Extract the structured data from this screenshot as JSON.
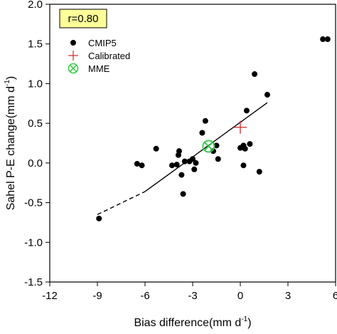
{
  "chart_data": {
    "type": "scatter",
    "xlabel": "Bias difference(mm d",
    "xlabel_sup": "-1",
    "xlabel_close": ")",
    "ylabel": "Sahel P-E change(mm d",
    "ylabel_sup": "-1",
    "ylabel_close": ")",
    "xlim": [
      -12,
      6
    ],
    "ylim": [
      -1.5,
      2.0
    ],
    "xticks": [
      -12,
      -9,
      -6,
      -3,
      0,
      3,
      6
    ],
    "xtick_labels": [
      "-12",
      "-9",
      "-6",
      "-3",
      "0",
      "3",
      "6"
    ],
    "yticks": [
      -1.5,
      -1.0,
      -0.5,
      0.0,
      0.5,
      1.0,
      1.5,
      2.0
    ],
    "ytick_labels": [
      "-1.5",
      "-1.0",
      "-0.5",
      "0.0",
      "0.5",
      "1.0",
      "1.5",
      "2.0"
    ],
    "annotation": "r=0.80",
    "legend": {
      "placement": "top-left",
      "entries": [
        {
          "label": "CMIP5",
          "marker": "filled-circle",
          "color": "#000000"
        },
        {
          "label": "Calibrated",
          "marker": "plus",
          "color": "#d62728"
        },
        {
          "label": "MME",
          "marker": "circle-x",
          "color": "#2ecc40"
        }
      ]
    },
    "series": [
      {
        "name": "CMIP5",
        "color": "#000000",
        "points": [
          {
            "x": -8.9,
            "y": -0.7
          },
          {
            "x": -6.5,
            "y": -0.01
          },
          {
            "x": -6.2,
            "y": -0.03
          },
          {
            "x": -5.3,
            "y": 0.18
          },
          {
            "x": -4.3,
            "y": -0.03
          },
          {
            "x": -4.0,
            "y": -0.02
          },
          {
            "x": -3.9,
            "y": 0.1
          },
          {
            "x": -3.85,
            "y": 0.15
          },
          {
            "x": -3.7,
            "y": -0.15
          },
          {
            "x": -3.6,
            "y": -0.39
          },
          {
            "x": -3.5,
            "y": 0.02
          },
          {
            "x": -3.2,
            "y": 0.02
          },
          {
            "x": -3.0,
            "y": 0.05
          },
          {
            "x": -2.9,
            "y": -0.08
          },
          {
            "x": -2.8,
            "y": 0.0
          },
          {
            "x": -2.4,
            "y": 0.38
          },
          {
            "x": -2.2,
            "y": 0.53
          },
          {
            "x": -1.7,
            "y": 0.15
          },
          {
            "x": -1.5,
            "y": 0.22
          },
          {
            "x": -1.4,
            "y": 0.05
          },
          {
            "x": 0.6,
            "y": 0.24
          },
          {
            "x": 0.0,
            "y": 0.19
          },
          {
            "x": 0.2,
            "y": 0.22
          },
          {
            "x": 0.3,
            "y": 0.18
          },
          {
            "x": 0.2,
            "y": -0.03
          },
          {
            "x": 0.4,
            "y": 0.66
          },
          {
            "x": 0.9,
            "y": 1.12
          },
          {
            "x": 1.2,
            "y": -0.11
          },
          {
            "x": 1.7,
            "y": 0.86
          },
          {
            "x": 5.2,
            "y": 1.56
          },
          {
            "x": 5.5,
            "y": 1.56
          }
        ]
      },
      {
        "name": "Calibrated",
        "color": "#d62728",
        "points": [
          {
            "x": 0.0,
            "y": 0.45
          }
        ]
      },
      {
        "name": "MME",
        "color": "#2ecc40",
        "points": [
          {
            "x": -2.0,
            "y": 0.21
          }
        ]
      }
    ],
    "regression_line": {
      "dashed_segment": {
        "x": [
          -9.0,
          -6.0
        ],
        "y": [
          -0.65,
          -0.36
        ]
      },
      "solid_segment": {
        "x": [
          -6.0,
          1.7
        ],
        "y": [
          -0.36,
          0.76
        ]
      }
    }
  }
}
